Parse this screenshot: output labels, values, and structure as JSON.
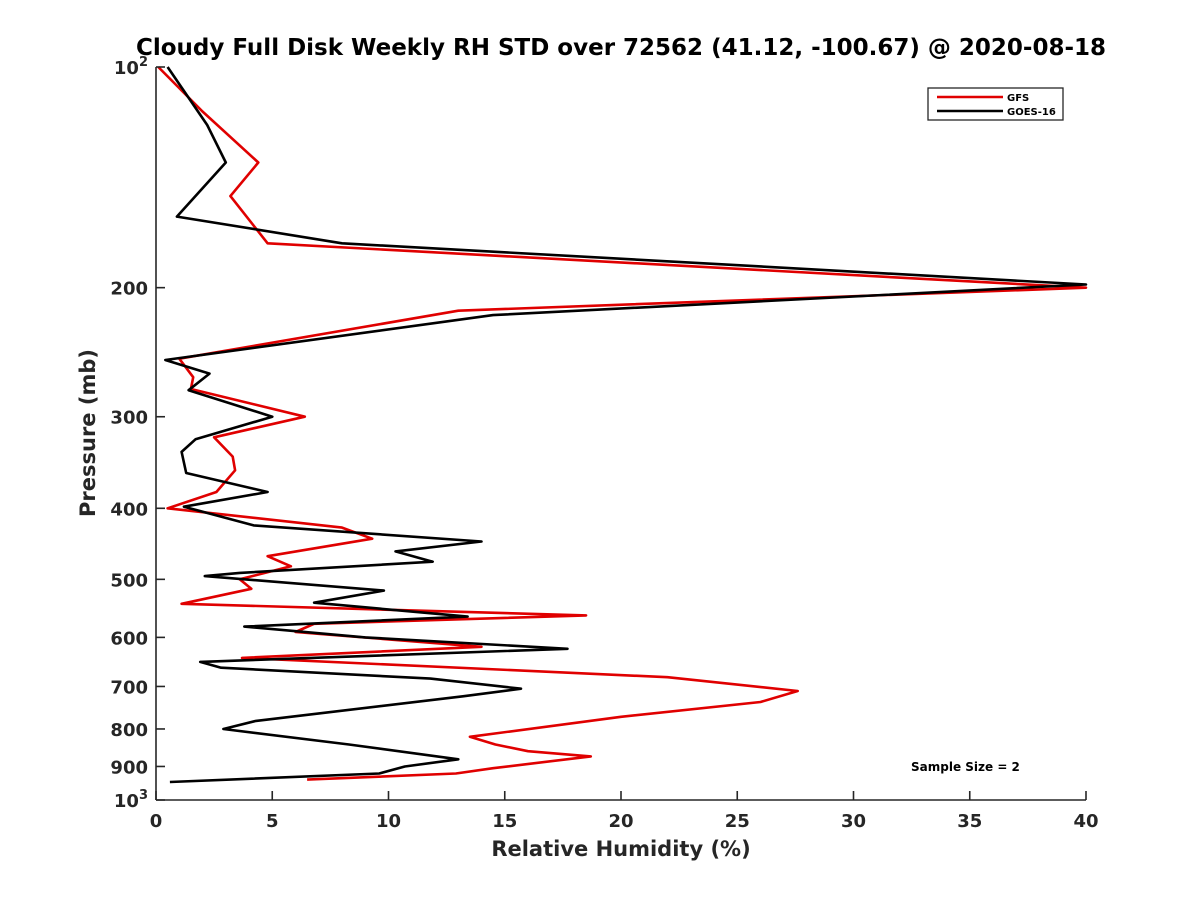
{
  "chart_data": {
    "type": "line",
    "title": "Cloudy Full Disk Weekly RH STD over 72562 (41.12, -100.67) @ 2020-08-18",
    "xlabel": "Relative Humidity (%)",
    "ylabel": "Pressure (mb)",
    "xlim": [
      0,
      40
    ],
    "ylim": [
      100,
      1000
    ],
    "y_scale": "log",
    "y_reversed": true,
    "x_ticks": [
      "0",
      "5",
      "10",
      "15",
      "20",
      "25",
      "30",
      "35",
      "40"
    ],
    "y_ticks": [
      {
        "value": 100,
        "label": "10",
        "sup": "2"
      },
      {
        "value": 200,
        "label": "200",
        "sup": ""
      },
      {
        "value": 300,
        "label": "300",
        "sup": ""
      },
      {
        "value": 400,
        "label": "400",
        "sup": ""
      },
      {
        "value": 500,
        "label": "500",
        "sup": ""
      },
      {
        "value": 600,
        "label": "600",
        "sup": ""
      },
      {
        "value": 700,
        "label": "700",
        "sup": ""
      },
      {
        "value": 800,
        "label": "800",
        "sup": ""
      },
      {
        "value": 900,
        "label": "900",
        "sup": ""
      },
      {
        "value": 1000,
        "label": "10",
        "sup": "3"
      }
    ],
    "grid": false,
    "legend_position": "top-right",
    "annotation": "Sample Size = 2",
    "series": [
      {
        "name": "GFS",
        "color": "#e00000",
        "points": [
          [
            0.1,
            100
          ],
          [
            2.0,
            115
          ],
          [
            4.4,
            135
          ],
          [
            3.2,
            150
          ],
          [
            4.8,
            174
          ],
          [
            40.0,
            200
          ],
          [
            13.0,
            215
          ],
          [
            1.0,
            250
          ],
          [
            1.6,
            265
          ],
          [
            1.5,
            275
          ],
          [
            6.4,
            300
          ],
          [
            2.5,
            320
          ],
          [
            3.3,
            340
          ],
          [
            3.4,
            355
          ],
          [
            2.6,
            380
          ],
          [
            0.5,
            400
          ],
          [
            8.0,
            425
          ],
          [
            9.3,
            440
          ],
          [
            4.8,
            465
          ],
          [
            5.8,
            480
          ],
          [
            3.6,
            500
          ],
          [
            4.1,
            515
          ],
          [
            1.1,
            540
          ],
          [
            18.5,
            560
          ],
          [
            6.8,
            575
          ],
          [
            6.0,
            590
          ],
          [
            14.0,
            618
          ],
          [
            3.7,
            640
          ],
          [
            22.0,
            680
          ],
          [
            27.6,
            710
          ],
          [
            26.0,
            735
          ],
          [
            20.0,
            770
          ],
          [
            13.5,
            820
          ],
          [
            14.6,
            840
          ],
          [
            16.0,
            858
          ],
          [
            18.7,
            872
          ],
          [
            14.5,
            905
          ],
          [
            12.9,
            920
          ],
          [
            6.5,
            938
          ]
        ]
      },
      {
        "name": "GOES-16",
        "color": "#000000",
        "points": [
          [
            0.5,
            100
          ],
          [
            2.2,
            120
          ],
          [
            3.0,
            135
          ],
          [
            0.9,
            160
          ],
          [
            8.0,
            174
          ],
          [
            40.0,
            198
          ],
          [
            14.5,
            218
          ],
          [
            0.4,
            251
          ],
          [
            2.3,
            262
          ],
          [
            1.4,
            276
          ],
          [
            5.0,
            300
          ],
          [
            1.7,
            322
          ],
          [
            1.1,
            335
          ],
          [
            1.3,
            358
          ],
          [
            4.8,
            380
          ],
          [
            1.2,
            398
          ],
          [
            4.2,
            422
          ],
          [
            14.0,
            444
          ],
          [
            10.3,
            458
          ],
          [
            11.9,
            473
          ],
          [
            3.6,
            490
          ],
          [
            2.1,
            495
          ],
          [
            9.8,
            518
          ],
          [
            6.8,
            538
          ],
          [
            13.4,
            562
          ],
          [
            3.8,
            580
          ],
          [
            9.0,
            600
          ],
          [
            17.7,
            622
          ],
          [
            1.9,
            648
          ],
          [
            2.8,
            660
          ],
          [
            11.8,
            683
          ],
          [
            15.7,
            705
          ],
          [
            13.2,
            722
          ],
          [
            4.3,
            780
          ],
          [
            2.9,
            800
          ],
          [
            8.3,
            840
          ],
          [
            13.0,
            880
          ],
          [
            10.7,
            900
          ],
          [
            9.6,
            920
          ],
          [
            0.6,
            945
          ]
        ]
      }
    ]
  }
}
